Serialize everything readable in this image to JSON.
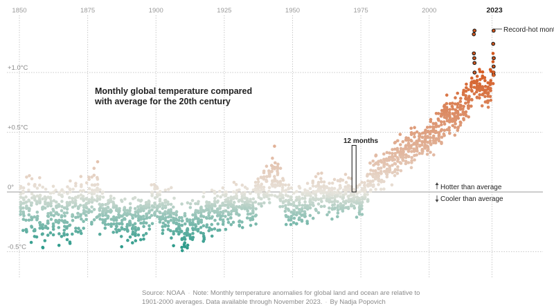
{
  "chart_data": {
    "type": "scatter",
    "title_lines": [
      "Monthly global temperature compared",
      "with average for the 20th century"
    ],
    "x_ticks": [
      "1850",
      "1875",
      "1900",
      "1925",
      "1950",
      "1975",
      "2000"
    ],
    "x_tick_values": [
      1850,
      1875,
      1900,
      1925,
      1950,
      1975,
      2000
    ],
    "xlim": [
      1850,
      2023.9
    ],
    "y_ticks": [
      {
        "value": 1.0,
        "label": "+1.0°C"
      },
      {
        "value": 0.5,
        "label": "+0.5°C"
      },
      {
        "value": 0.0,
        "label": "0°"
      },
      {
        "value": -0.5,
        "label": "-0.5°C"
      }
    ],
    "ylim": [
      -0.75,
      1.45
    ],
    "annual_anomaly_anchors": {
      "years": [
        1850,
        1855,
        1860,
        1865,
        1870,
        1875,
        1878,
        1880,
        1885,
        1890,
        1895,
        1900,
        1905,
        1910,
        1915,
        1920,
        1925,
        1930,
        1935,
        1940,
        1944,
        1946,
        1950,
        1955,
        1960,
        1965,
        1970,
        1975,
        1980,
        1985,
        1990,
        1995,
        2000,
        2005,
        2010,
        2015,
        2016,
        2020,
        2022,
        2023
      ],
      "values": [
        -0.12,
        -0.15,
        -0.18,
        -0.17,
        -0.13,
        -0.12,
        0.02,
        -0.12,
        -0.22,
        -0.24,
        -0.2,
        -0.1,
        -0.2,
        -0.33,
        -0.22,
        -0.18,
        -0.13,
        -0.1,
        -0.1,
        0.05,
        0.15,
        0.0,
        -0.15,
        -0.1,
        -0.02,
        -0.05,
        -0.02,
        -0.08,
        0.18,
        0.2,
        0.35,
        0.4,
        0.45,
        0.58,
        0.65,
        0.78,
        0.95,
        0.88,
        0.82,
        1.02
      ]
    },
    "highlight_12_months": {
      "label": "12 months",
      "year_start": 1972,
      "year_end": 1973,
      "y_min": 0.0,
      "y_max": 0.39
    },
    "record_hot_months_2023": [
      1.35,
      1.24,
      1.12,
      1.05,
      1.0,
      0.98
    ],
    "record_hot_months_2016": [
      1.35,
      1.32,
      1.16,
      1.12,
      1.08,
      1.0
    ],
    "record_hot_label": "Record-hot month",
    "latest_year_label": "2023",
    "hotter_label": "Hotter than average",
    "cooler_label": "Cooler than average",
    "colors": {
      "cold": "#2f9c8c",
      "neutral": "#e8e4dc",
      "warm": "#d4571d",
      "record_outline": "#1a1a1a",
      "grid": "#c8c8c8"
    }
  },
  "footer": {
    "source": "Source: NOAA",
    "note": "Note: Monthly temperature anomalies for global land and ocean are relative to 1901-2000 averages. Data available through November 2023.",
    "byline": "By Nadja Popovich"
  }
}
